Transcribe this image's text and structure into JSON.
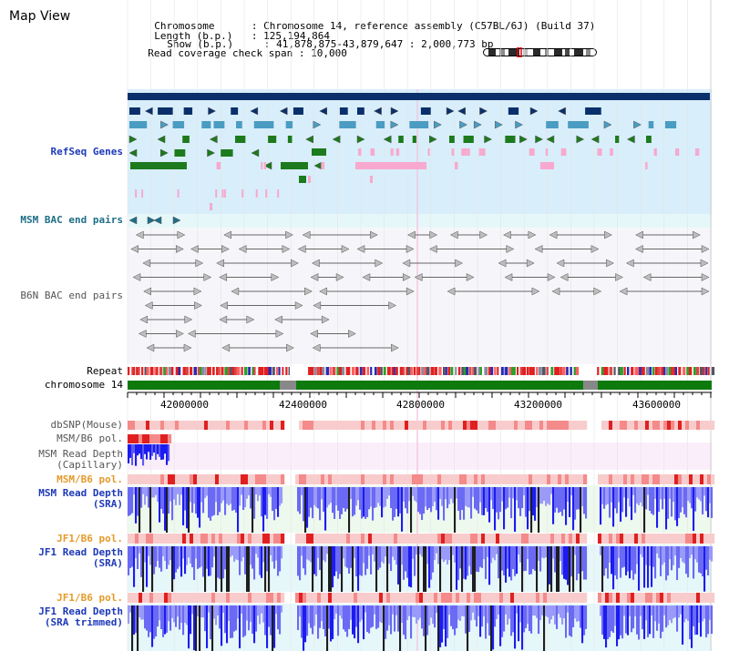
{
  "title": "Map View",
  "info": {
    "chromosome_key": "Chromosome",
    "chromosome_value": "Chromosome 14, reference assembly (C57BL/6J) (Build 37)",
    "length_key": "Length (b.p.)",
    "length_value": "125,194,864",
    "show_key": "Show (b.p.)",
    "show_value": "41,878,875-43,879,647 : 2,000,773 bp",
    "span_key": "Read coverage check span",
    "span_value": "10,000"
  },
  "tracks": {
    "refseq": "RefSeq Genes",
    "msm_bac": "MSM BAC end pairs",
    "b6n_bac": "B6N BAC end pairs",
    "repeat": "Repeat",
    "chromosome": "chromosome 14",
    "dbsnp": "dbSNP(Mouse)",
    "msm_b6_pol_1": "MSM/B6 pol.",
    "msm_depth_cap_1": "MSM Read Depth",
    "msm_depth_cap_2": "(Capillary)",
    "msm_b6_pol_2": "MSM/B6 pol.",
    "msm_depth_sra_1": "MSM Read Depth",
    "msm_depth_sra_2": "(SRA)",
    "jf1_b6_pol_1": "JF1/B6 pol.",
    "jf1_depth_sra_1": "JF1 Read Depth",
    "jf1_depth_sra_2": "(SRA)",
    "jf1_b6_pol_2": "JF1/B6 pol.",
    "jf1_depth_trim_1": "JF1 Read Depth",
    "jf1_depth_trim_2": "(SRA trimmed)"
  },
  "axis": {
    "ticks": [
      "42000000",
      "42400000",
      "42800000",
      "43200000",
      "43600000"
    ]
  },
  "colors": {
    "refseq_bg": "#d8eefa",
    "dark_navy": "#0b2f6b",
    "teal_blue": "#4a9cc2",
    "gene_green": "#1d7a1d",
    "pink": "#f7a9cf",
    "depth_blue": "#1c1cf0",
    "depth_black": "#1e1e1e",
    "chromosome_green": "#0e7a0e",
    "repeat_red": "#e02020"
  }
}
